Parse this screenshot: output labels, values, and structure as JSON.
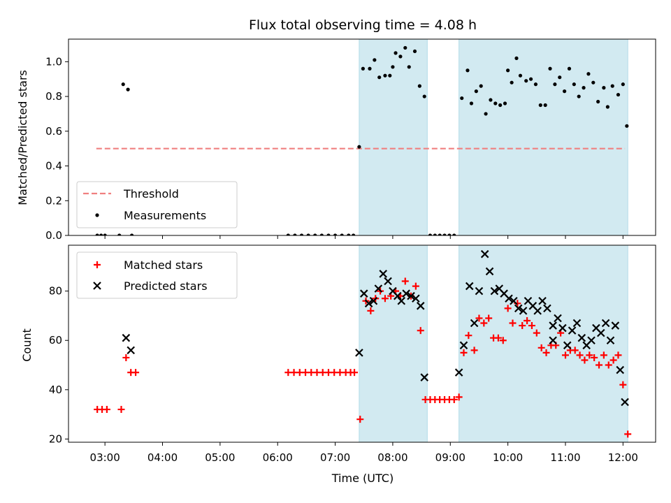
{
  "chart_data": {
    "title": "Flux total observing time = 4.08 h",
    "xlabel": "Time (UTC)",
    "x_unit": "hours UTC",
    "xlim": [
      "02:22",
      "12:34"
    ],
    "x_ticks": [
      "03:00",
      "04:00",
      "05:00",
      "06:00",
      "07:00",
      "08:00",
      "09:00",
      "10:00",
      "11:00",
      "12:00"
    ],
    "shaded_spans": [
      {
        "start": "07:25",
        "end": "08:36"
      },
      {
        "start": "09:09",
        "end": "12:05"
      }
    ],
    "colors": {
      "span": "#add8e6",
      "threshold": "#f08080",
      "measurements": "#000000",
      "matched": "#ff0000",
      "predicted": "#000000"
    },
    "panels": [
      {
        "type": "scatter",
        "ylabel": "Matched/Predicted stars",
        "ylim": [
          0,
          1.13
        ],
        "y_ticks": [
          "0.0",
          "0.2",
          "0.4",
          "0.6",
          "0.8",
          "1.0"
        ],
        "legend": {
          "position": "lower left",
          "entries": [
            "Threshold",
            "Measurements"
          ]
        },
        "threshold": {
          "name": "Threshold",
          "value": 0.5,
          "x_start": "02:51",
          "x_end": "12:02"
        },
        "series": [
          {
            "name": "Measurements",
            "marker": "dot",
            "points": [
              [
                "02:52",
                0
              ],
              [
                "02:56",
                0
              ],
              [
                "03:00",
                0
              ],
              [
                "03:15",
                0
              ],
              [
                "03:19",
                0.87
              ],
              [
                "03:24",
                0.84
              ],
              [
                "03:28",
                0
              ],
              [
                "06:11",
                0
              ],
              [
                "06:18",
                0
              ],
              [
                "06:25",
                0
              ],
              [
                "06:32",
                0
              ],
              [
                "06:39",
                0
              ],
              [
                "06:46",
                0
              ],
              [
                "06:53",
                0
              ],
              [
                "07:00",
                0
              ],
              [
                "07:07",
                0
              ],
              [
                "07:14",
                0
              ],
              [
                "07:19",
                0
              ],
              [
                "07:25",
                0.51
              ],
              [
                "07:29",
                0.96
              ],
              [
                "07:36",
                0.96
              ],
              [
                "07:41",
                1.01
              ],
              [
                "07:46",
                0.91
              ],
              [
                "07:52",
                0.92
              ],
              [
                "07:57",
                0.92
              ],
              [
                "08:00",
                0.97
              ],
              [
                "08:03",
                1.05
              ],
              [
                "08:08",
                1.03
              ],
              [
                "08:13",
                1.08
              ],
              [
                "08:17",
                0.97
              ],
              [
                "08:23",
                1.06
              ],
              [
                "08:28",
                0.86
              ],
              [
                "08:33",
                0.8
              ],
              [
                "08:39",
                0
              ],
              [
                "08:44",
                0
              ],
              [
                "08:49",
                0
              ],
              [
                "08:54",
                0
              ],
              [
                "08:59",
                0
              ],
              [
                "09:04",
                0
              ],
              [
                "09:12",
                0.79
              ],
              [
                "09:18",
                0.95
              ],
              [
                "09:22",
                0.76
              ],
              [
                "09:27",
                0.83
              ],
              [
                "09:32",
                0.86
              ],
              [
                "09:37",
                0.7
              ],
              [
                "09:42",
                0.78
              ],
              [
                "09:47",
                0.76
              ],
              [
                "09:52",
                0.75
              ],
              [
                "09:57",
                0.76
              ],
              [
                "10:00",
                0.95
              ],
              [
                "10:04",
                0.88
              ],
              [
                "10:09",
                1.02
              ],
              [
                "10:13",
                0.92
              ],
              [
                "10:19",
                0.89
              ],
              [
                "10:24",
                0.9
              ],
              [
                "10:29",
                0.87
              ],
              [
                "10:34",
                0.75
              ],
              [
                "10:39",
                0.75
              ],
              [
                "10:44",
                0.96
              ],
              [
                "10:49",
                0.87
              ],
              [
                "10:54",
                0.91
              ],
              [
                "10:59",
                0.83
              ],
              [
                "11:04",
                0.96
              ],
              [
                "11:09",
                0.87
              ],
              [
                "11:14",
                0.8
              ],
              [
                "11:19",
                0.85
              ],
              [
                "11:24",
                0.93
              ],
              [
                "11:29",
                0.88
              ],
              [
                "11:34",
                0.77
              ],
              [
                "11:40",
                0.85
              ],
              [
                "11:44",
                0.74
              ],
              [
                "11:49",
                0.86
              ],
              [
                "11:55",
                0.81
              ],
              [
                "12:00",
                0.87
              ],
              [
                "12:04",
                0.63
              ]
            ]
          }
        ]
      },
      {
        "type": "scatter",
        "ylabel": "Count",
        "ylim": [
          18.7,
          98.6
        ],
        "y_ticks": [
          "20",
          "40",
          "60",
          "80"
        ],
        "legend": {
          "position": "upper left",
          "entries": [
            "Matched stars",
            "Predicted stars"
          ]
        },
        "series": [
          {
            "name": "Matched stars",
            "marker": "plus",
            "points": [
              [
                "02:52",
                32
              ],
              [
                "02:57",
                32
              ],
              [
                "03:02",
                32
              ],
              [
                "03:17",
                32
              ],
              [
                "03:22",
                53
              ],
              [
                "03:27",
                47
              ],
              [
                "03:32",
                47
              ],
              [
                "06:11",
                47
              ],
              [
                "06:17",
                47
              ],
              [
                "06:23",
                47
              ],
              [
                "06:29",
                47
              ],
              [
                "06:35",
                47
              ],
              [
                "06:41",
                47
              ],
              [
                "06:47",
                47
              ],
              [
                "06:53",
                47
              ],
              [
                "06:59",
                47
              ],
              [
                "07:05",
                47
              ],
              [
                "07:11",
                47
              ],
              [
                "07:16",
                47
              ],
              [
                "07:20",
                47
              ],
              [
                "07:26",
                28
              ],
              [
                "07:32",
                76
              ],
              [
                "07:37",
                72
              ],
              [
                "07:42",
                77
              ],
              [
                "07:47",
                80
              ],
              [
                "07:52",
                77
              ],
              [
                "07:58",
                78
              ],
              [
                "08:03",
                80
              ],
              [
                "08:08",
                78
              ],
              [
                "08:13",
                84
              ],
              [
                "08:19",
                78
              ],
              [
                "08:24",
                82
              ],
              [
                "08:29",
                64
              ],
              [
                "08:34",
                36
              ],
              [
                "08:39",
                36
              ],
              [
                "08:44",
                36
              ],
              [
                "08:49",
                36
              ],
              [
                "08:54",
                36
              ],
              [
                "08:59",
                36
              ],
              [
                "09:04",
                36
              ],
              [
                "09:09",
                37
              ],
              [
                "09:14",
                55
              ],
              [
                "09:19",
                62
              ],
              [
                "09:25",
                56
              ],
              [
                "09:30",
                69
              ],
              [
                "09:35",
                67
              ],
              [
                "09:40",
                69
              ],
              [
                "09:45",
                61
              ],
              [
                "09:50",
                61
              ],
              [
                "09:55",
                60
              ],
              [
                "10:00",
                73
              ],
              [
                "10:05",
                67
              ],
              [
                "10:10",
                75
              ],
              [
                "10:15",
                66
              ],
              [
                "10:20",
                68
              ],
              [
                "10:25",
                66
              ],
              [
                "10:30",
                63
              ],
              [
                "10:35",
                57
              ],
              [
                "10:40",
                55
              ],
              [
                "10:45",
                58
              ],
              [
                "10:50",
                58
              ],
              [
                "10:55",
                63
              ],
              [
                "11:00",
                54
              ],
              [
                "11:05",
                56
              ],
              [
                "11:10",
                56
              ],
              [
                "11:15",
                54
              ],
              [
                "11:20",
                52
              ],
              [
                "11:25",
                54
              ],
              [
                "11:30",
                53
              ],
              [
                "11:35",
                50
              ],
              [
                "11:40",
                54
              ],
              [
                "11:45",
                50
              ],
              [
                "11:50",
                52
              ],
              [
                "11:55",
                54
              ],
              [
                "12:00",
                42
              ],
              [
                "12:05",
                22
              ]
            ]
          },
          {
            "name": "Predicted stars",
            "marker": "x",
            "points": [
              [
                "03:22",
                61
              ],
              [
                "03:27",
                56
              ],
              [
                "07:25",
                55
              ],
              [
                "07:30",
                79
              ],
              [
                "07:35",
                75
              ],
              [
                "07:40",
                76
              ],
              [
                "07:45",
                81
              ],
              [
                "07:50",
                87
              ],
              [
                "07:55",
                84
              ],
              [
                "08:00",
                80
              ],
              [
                "08:05",
                78
              ],
              [
                "08:09",
                76
              ],
              [
                "08:14",
                79
              ],
              [
                "08:19",
                78
              ],
              [
                "08:24",
                77
              ],
              [
                "08:29",
                74
              ],
              [
                "08:33",
                45
              ],
              [
                "09:09",
                47
              ],
              [
                "09:14",
                58
              ],
              [
                "09:20",
                82
              ],
              [
                "09:25",
                67
              ],
              [
                "09:30",
                80
              ],
              [
                "09:36",
                95
              ],
              [
                "09:41",
                88
              ],
              [
                "09:46",
                80
              ],
              [
                "09:51",
                81
              ],
              [
                "09:56",
                79
              ],
              [
                "10:01",
                77
              ],
              [
                "10:06",
                76
              ],
              [
                "10:11",
                73
              ],
              [
                "10:16",
                72
              ],
              [
                "10:21",
                76
              ],
              [
                "10:26",
                74
              ],
              [
                "10:31",
                72
              ],
              [
                "10:36",
                76
              ],
              [
                "10:41",
                73
              ],
              [
                "10:47",
                66
              ],
              [
                "10:47",
                60
              ],
              [
                "10:52",
                69
              ],
              [
                "10:57",
                65
              ],
              [
                "11:02",
                58
              ],
              [
                "11:07",
                64
              ],
              [
                "11:12",
                67
              ],
              [
                "11:17",
                61
              ],
              [
                "11:22",
                58
              ],
              [
                "11:27",
                60
              ],
              [
                "11:32",
                65
              ],
              [
                "11:37",
                63
              ],
              [
                "11:42",
                67
              ],
              [
                "11:47",
                60
              ],
              [
                "11:52",
                66
              ],
              [
                "11:57",
                48
              ],
              [
                "12:02",
                35
              ]
            ]
          }
        ]
      }
    ]
  }
}
